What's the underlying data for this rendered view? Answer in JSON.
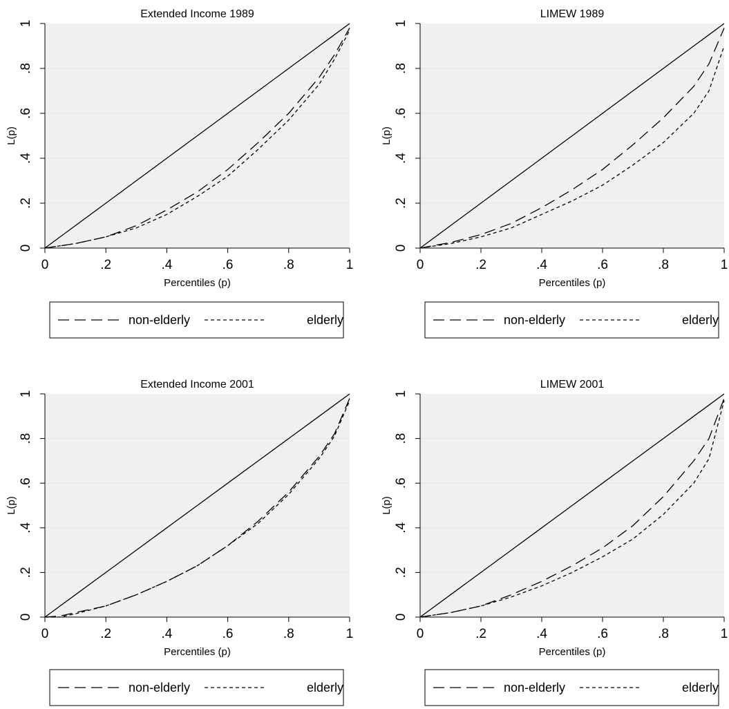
{
  "chart_data": [
    {
      "type": "line",
      "title": "Extended Income 1989",
      "xlabel": "Percentiles (p)",
      "ylabel": "L(p)",
      "xlim": [
        0,
        1
      ],
      "ylim": [
        0,
        1
      ],
      "xticks": [
        "0",
        ".2",
        ".4",
        ".6",
        ".8",
        "1"
      ],
      "yticks": [
        "0",
        ".2",
        ".4",
        ".6",
        ".8",
        "1"
      ],
      "grid": true,
      "legend": "bottom",
      "x": [
        0,
        0.1,
        0.2,
        0.3,
        0.4,
        0.5,
        0.6,
        0.7,
        0.8,
        0.9,
        0.95,
        1
      ],
      "series": [
        {
          "name": "",
          "style": "solid",
          "values": [
            0,
            0.1,
            0.2,
            0.3,
            0.4,
            0.5,
            0.6,
            0.7,
            0.8,
            0.9,
            0.95,
            1
          ]
        },
        {
          "name": "non-elderly",
          "style": "longdash",
          "values": [
            0,
            0.02,
            0.05,
            0.1,
            0.17,
            0.25,
            0.35,
            0.47,
            0.6,
            0.76,
            0.86,
            0.98
          ]
        },
        {
          "name": "elderly",
          "style": "shortdash",
          "values": [
            0,
            0.02,
            0.05,
            0.09,
            0.15,
            0.23,
            0.32,
            0.44,
            0.57,
            0.73,
            0.84,
            0.97
          ]
        }
      ]
    },
    {
      "type": "line",
      "title": "LIMEW 1989",
      "xlabel": "Percentiles (p)",
      "ylabel": "L(p)",
      "xlim": [
        0,
        1
      ],
      "ylim": [
        0,
        1
      ],
      "xticks": [
        "0",
        ".2",
        ".4",
        ".6",
        ".8",
        "1"
      ],
      "yticks": [
        "0",
        ".2",
        ".4",
        ".6",
        ".8",
        "1"
      ],
      "grid": true,
      "legend": "bottom",
      "x": [
        0,
        0.1,
        0.2,
        0.3,
        0.4,
        0.5,
        0.6,
        0.7,
        0.8,
        0.9,
        0.95,
        1
      ],
      "series": [
        {
          "name": "",
          "style": "solid",
          "values": [
            0,
            0.1,
            0.2,
            0.3,
            0.4,
            0.5,
            0.6,
            0.7,
            0.8,
            0.9,
            0.95,
            1
          ]
        },
        {
          "name": "non-elderly",
          "style": "longdash",
          "values": [
            0,
            0.025,
            0.06,
            0.11,
            0.18,
            0.26,
            0.35,
            0.46,
            0.58,
            0.72,
            0.82,
            0.98
          ]
        },
        {
          "name": "elderly",
          "style": "shortdash",
          "values": [
            0,
            0.02,
            0.05,
            0.09,
            0.15,
            0.21,
            0.28,
            0.37,
            0.47,
            0.6,
            0.7,
            0.9
          ]
        }
      ]
    },
    {
      "type": "line",
      "title": "Extended Income 2001",
      "xlabel": "Percentiles (p)",
      "ylabel": "L(p)",
      "xlim": [
        0,
        1
      ],
      "ylim": [
        0,
        1
      ],
      "xticks": [
        "0",
        ".2",
        ".4",
        ".6",
        ".8",
        "1"
      ],
      "yticks": [
        "0",
        ".2",
        ".4",
        ".6",
        ".8",
        "1"
      ],
      "grid": true,
      "legend": "bottom",
      "x": [
        0,
        0.05,
        0.1,
        0.2,
        0.3,
        0.4,
        0.5,
        0.6,
        0.7,
        0.8,
        0.9,
        0.95,
        1
      ],
      "series": [
        {
          "name": "",
          "style": "solid",
          "values": [
            0,
            0.05,
            0.1,
            0.2,
            0.3,
            0.4,
            0.5,
            0.6,
            0.7,
            0.8,
            0.9,
            0.95,
            1
          ]
        },
        {
          "name": "non-elderly",
          "style": "longdash",
          "values": [
            0,
            0.005,
            0.02,
            0.05,
            0.1,
            0.16,
            0.23,
            0.32,
            0.43,
            0.56,
            0.72,
            0.82,
            0.98
          ]
        },
        {
          "name": "elderly",
          "style": "shortdash",
          "values": [
            0,
            0.0,
            0.015,
            0.05,
            0.1,
            0.16,
            0.23,
            0.32,
            0.42,
            0.55,
            0.71,
            0.81,
            0.97
          ]
        }
      ]
    },
    {
      "type": "line",
      "title": "LIMEW 2001",
      "xlabel": "Percentiles (p)",
      "ylabel": "L(p)",
      "xlim": [
        0,
        1
      ],
      "ylim": [
        0,
        1
      ],
      "xticks": [
        "0",
        ".2",
        ".4",
        ".6",
        ".8",
        "1"
      ],
      "yticks": [
        "0",
        ".2",
        ".4",
        ".6",
        ".8",
        "1"
      ],
      "grid": true,
      "legend": "bottom",
      "x": [
        0,
        0.1,
        0.2,
        0.3,
        0.4,
        0.5,
        0.6,
        0.7,
        0.8,
        0.9,
        0.95,
        1
      ],
      "series": [
        {
          "name": "",
          "style": "solid",
          "values": [
            0,
            0.1,
            0.2,
            0.3,
            0.4,
            0.5,
            0.6,
            0.7,
            0.8,
            0.9,
            0.95,
            1
          ]
        },
        {
          "name": "non-elderly",
          "style": "longdash",
          "values": [
            0,
            0.02,
            0.05,
            0.1,
            0.16,
            0.23,
            0.31,
            0.41,
            0.54,
            0.7,
            0.8,
            0.98
          ]
        },
        {
          "name": "elderly",
          "style": "shortdash",
          "values": [
            0,
            0.02,
            0.05,
            0.09,
            0.14,
            0.2,
            0.27,
            0.35,
            0.46,
            0.6,
            0.71,
            0.97
          ]
        }
      ]
    }
  ]
}
